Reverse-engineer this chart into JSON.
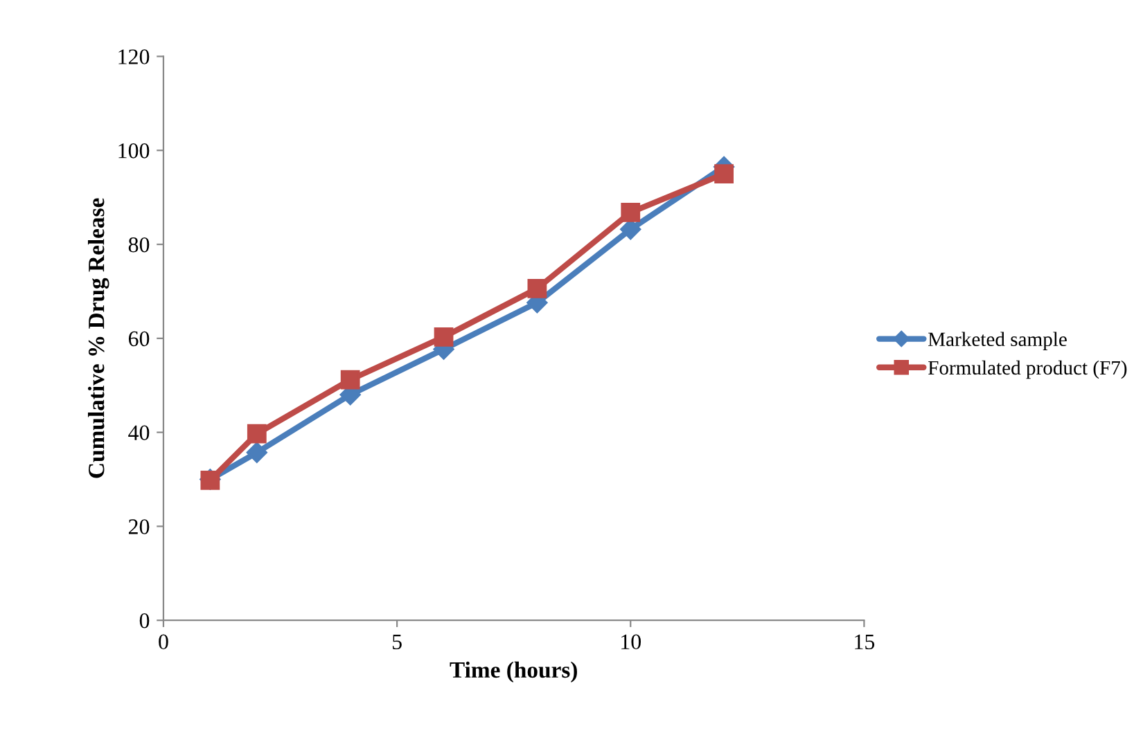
{
  "chart_data": {
    "type": "line",
    "xlabel": "Time (hours)",
    "ylabel": "Cumulative % Drug Release",
    "x": [
      1,
      2,
      4,
      6,
      8,
      10,
      12
    ],
    "series": [
      {
        "name": "Marketed sample",
        "color": "#4a7ebb",
        "values": [
          30,
          35.7,
          48,
          57.7,
          67.6,
          83.2,
          96.5
        ],
        "marker": "diamond"
      },
      {
        "name": "Formulated product (F7)",
        "color": "#be4b48",
        "values": [
          29.8,
          39.7,
          51.2,
          60.3,
          70.6,
          86.8,
          95
        ],
        "marker": "square"
      }
    ],
    "xlim": [
      0,
      15
    ],
    "xticks": [
      0,
      5,
      10,
      15
    ],
    "ylim": [
      0,
      120
    ],
    "yticks": [
      0,
      20,
      40,
      60,
      80,
      100,
      120
    ],
    "grid": false,
    "legend": "right",
    "line_style": "solid"
  }
}
